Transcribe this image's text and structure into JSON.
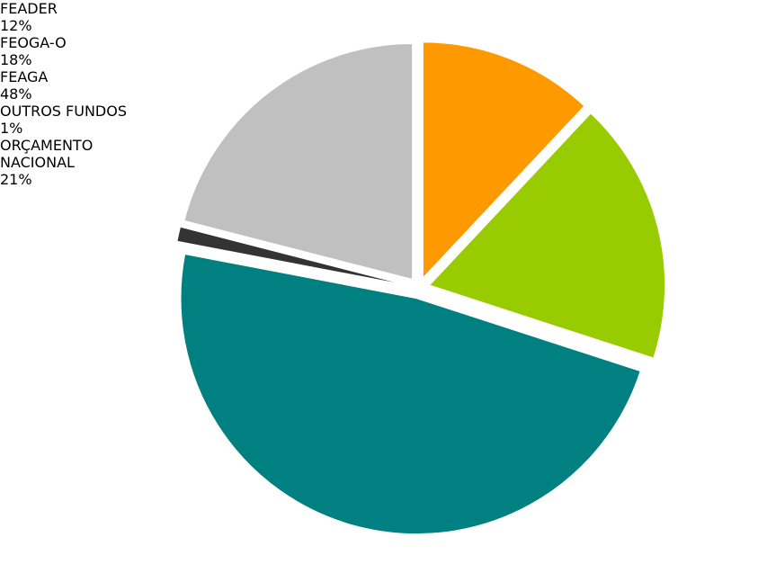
{
  "chart_data": {
    "type": "pie",
    "categories": [
      "FEADER",
      "FEOGA-O",
      "FEAGA",
      "OUTROS FUNDOS",
      "ORÇAMENTO NACIONAL"
    ],
    "values": [
      12,
      18,
      48,
      1,
      21
    ],
    "value_labels": [
      "12%",
      "18%",
      "48%",
      "1%",
      "21%"
    ],
    "colors": [
      "#FF9900",
      "#99CC00",
      "#008080",
      "#333333",
      "#C0C0C0"
    ]
  }
}
